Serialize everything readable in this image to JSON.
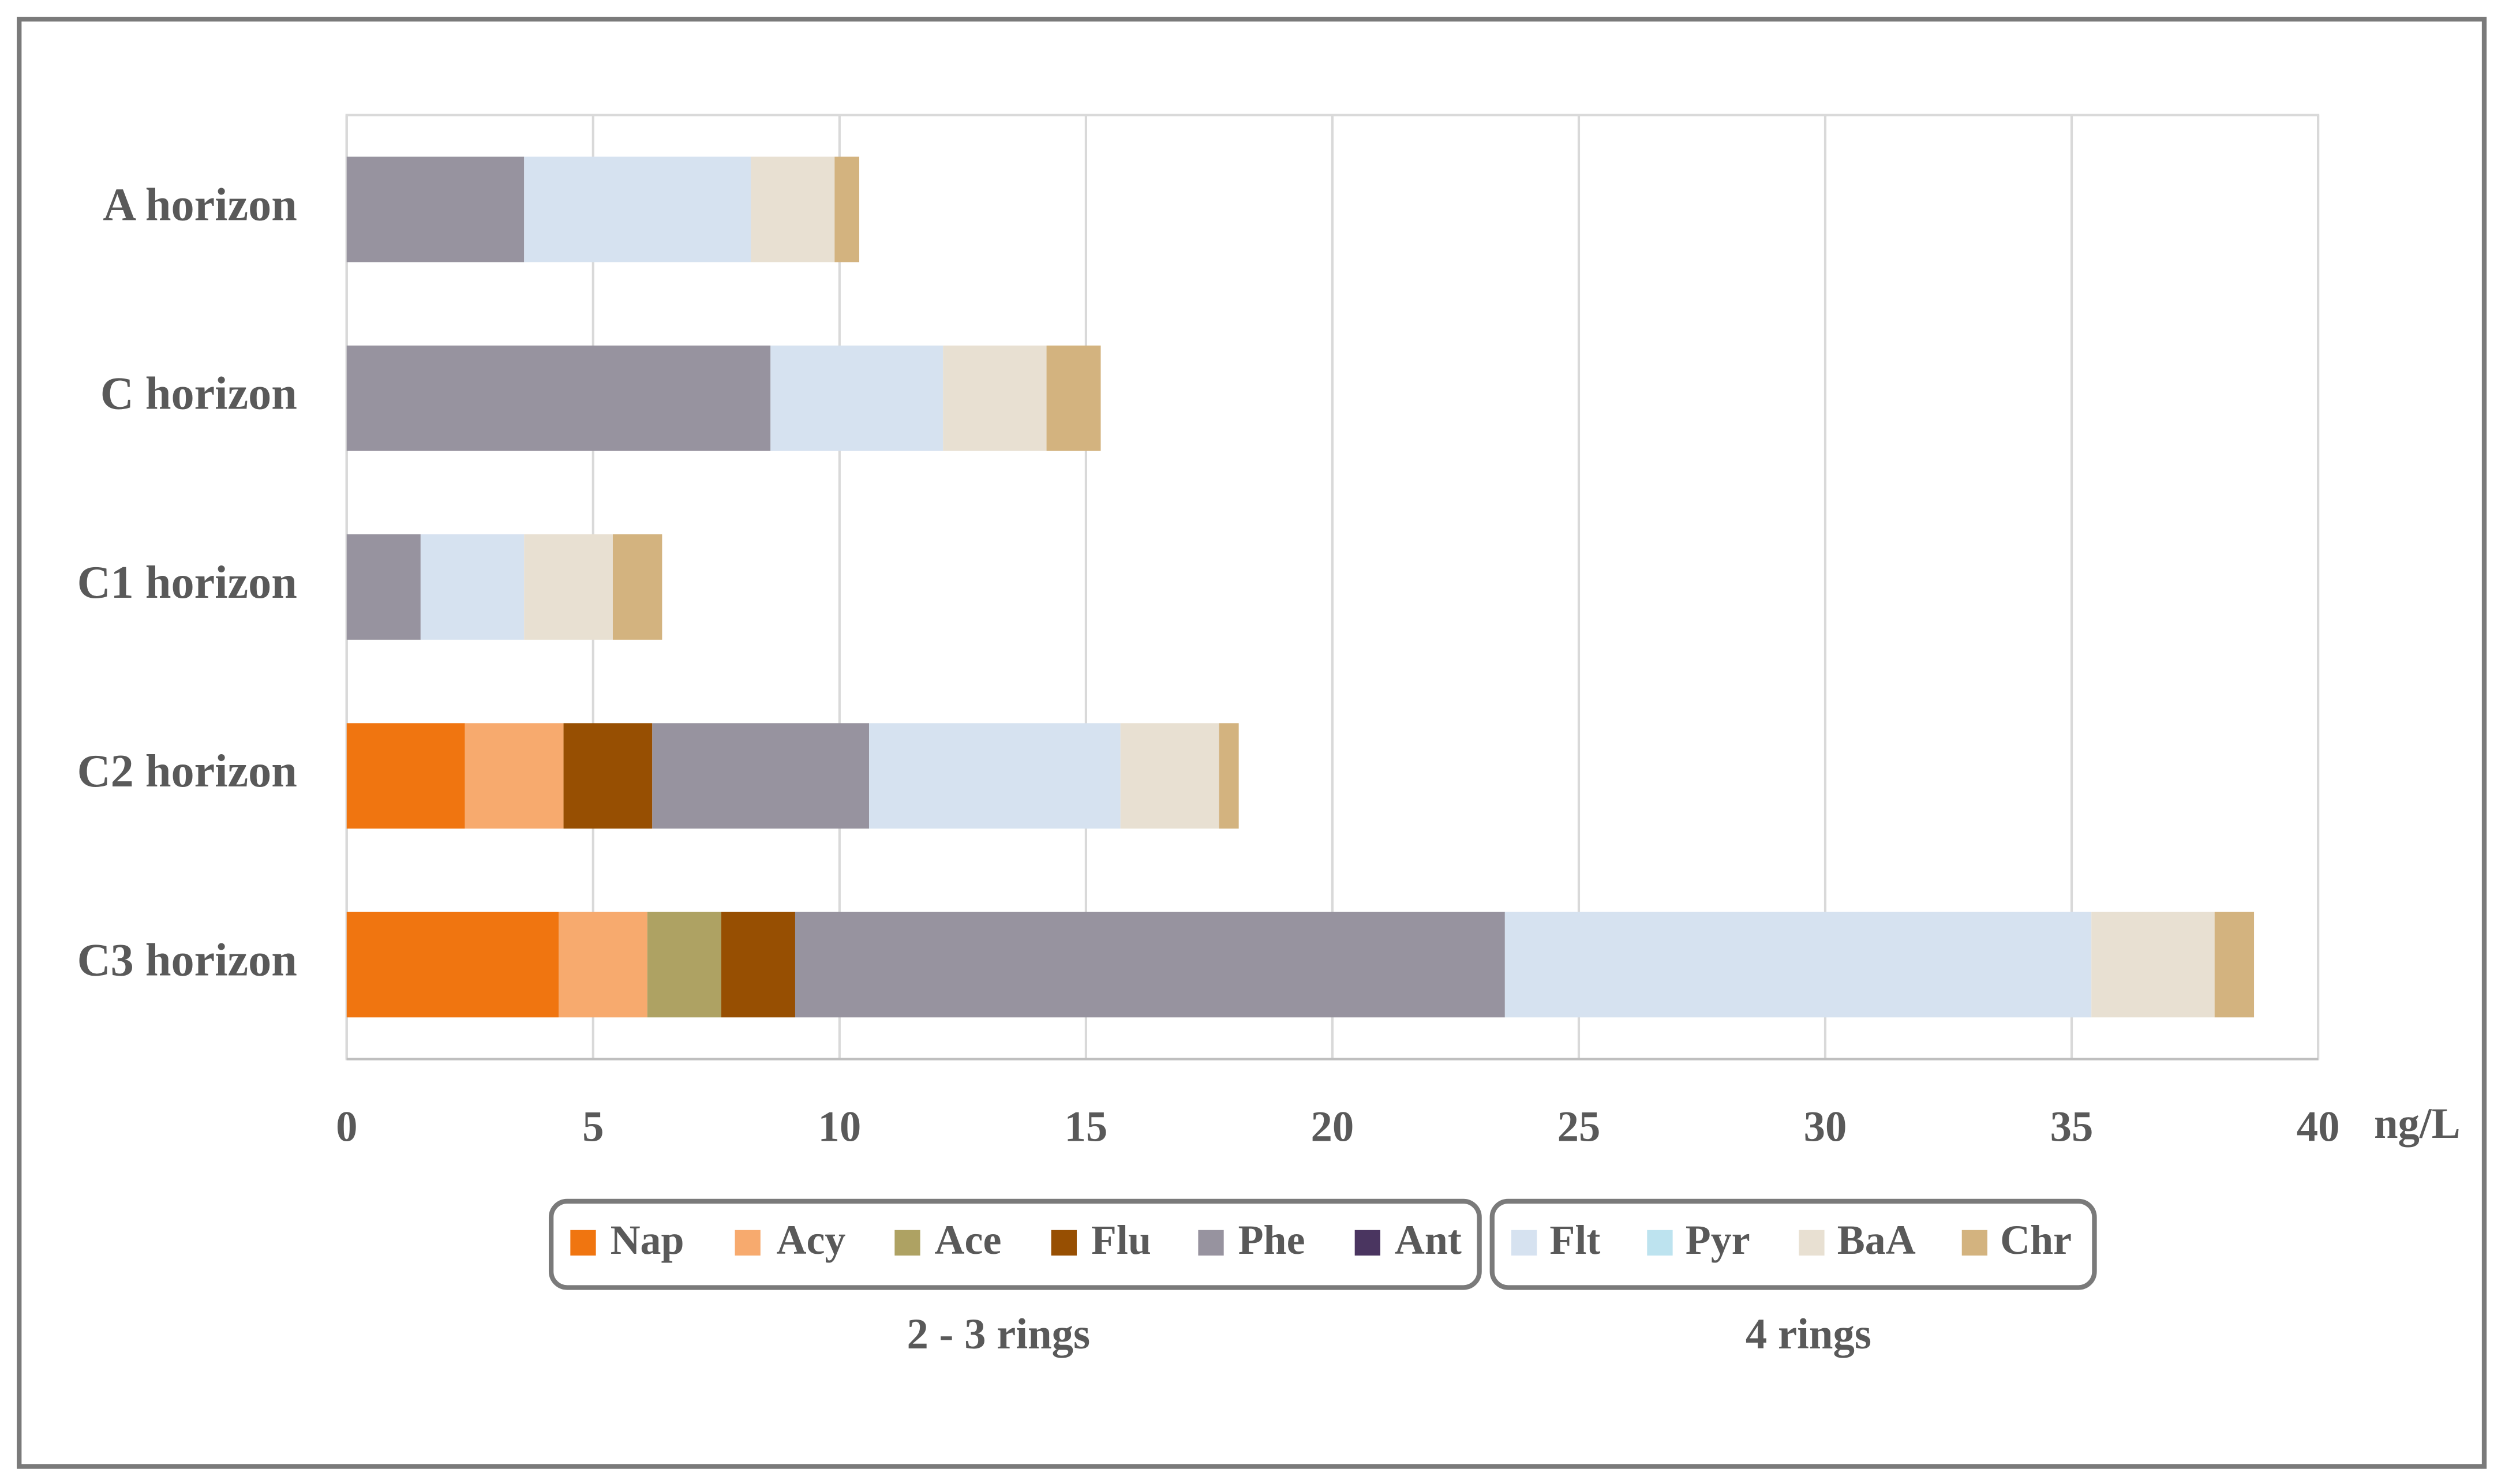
{
  "chart_data": {
    "type": "stacked-bar-horizontal",
    "x_label": "ng/L",
    "categories": [
      "A horizon",
      "C horizon",
      "C1 horizon",
      "C2 horizon",
      "C3 horizon"
    ],
    "series": [
      {
        "name": "Nap",
        "color": "#f07510",
        "values": [
          0,
          0,
          0,
          2.4,
          4.3
        ]
      },
      {
        "name": "Acy",
        "color": "#f7aa6e",
        "values": [
          0,
          0,
          0,
          2.0,
          1.8
        ]
      },
      {
        "name": "Ace",
        "color": "#aea263",
        "values": [
          0,
          0,
          0,
          0,
          1.5
        ]
      },
      {
        "name": "Flu",
        "color": "#974f02",
        "values": [
          0,
          0,
          0,
          1.8,
          1.5
        ]
      },
      {
        "name": "Phe",
        "color": "#97939f",
        "values": [
          3.6,
          8.6,
          1.5,
          4.4,
          14.4
        ]
      },
      {
        "name": "Ant",
        "color": "#4a3560",
        "values": [
          0,
          0,
          0,
          0,
          0
        ]
      },
      {
        "name": "Flt",
        "color": "#d6e2f0",
        "values": [
          4.6,
          3.5,
          2.1,
          5.1,
          11.9
        ]
      },
      {
        "name": "Pyr",
        "color": "#bde3ef",
        "values": [
          0,
          0,
          0,
          0,
          0
        ]
      },
      {
        "name": "BaA",
        "color": "#e8e0d2",
        "values": [
          1.7,
          2.1,
          1.8,
          2.0,
          2.5
        ]
      },
      {
        "name": "Chr",
        "color": "#d3b37f",
        "values": [
          0.5,
          1.1,
          1.0,
          0.4,
          0.8
        ]
      }
    ],
    "legend_groups": [
      {
        "label": "2 - 3 rings"
      },
      {
        "label": "4 rings"
      }
    ],
    "xlim": [
      0,
      40
    ],
    "xticks": [
      0,
      5,
      10,
      15,
      20,
      25,
      30,
      35,
      40
    ],
    "grid": true
  }
}
